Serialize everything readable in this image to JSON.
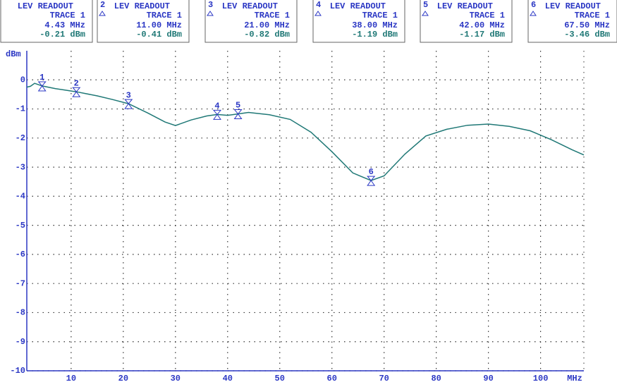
{
  "chart_data": {
    "type": "line",
    "y_label": "dBm",
    "x_label": "MHz",
    "xlim": [
      1.5,
      108.3
    ],
    "ylim": [
      -10,
      1
    ],
    "xticks": [
      10,
      20,
      30,
      40,
      50,
      60,
      70,
      80,
      90,
      100
    ],
    "yticks": [
      0,
      -1,
      -2,
      -3,
      -4,
      -5,
      -6,
      -7,
      -8,
      -9,
      -10
    ],
    "grid": true,
    "series": [
      {
        "name": "TRACE 1",
        "color": "#1f7876",
        "x": [
          1.5,
          2.2,
          3,
          4.43,
          7,
          11,
          15,
          18,
          21,
          24.7,
          28,
          30,
          33,
          36,
          38,
          40,
          42,
          44,
          48,
          52,
          56,
          60,
          64,
          67.5,
          70,
          74,
          78,
          82,
          86,
          90,
          94,
          98,
          102,
          106,
          108.3
        ],
        "values": [
          -0.25,
          -0.22,
          -0.12,
          -0.21,
          -0.3,
          -0.41,
          -0.55,
          -0.68,
          -0.82,
          -1.14,
          -1.45,
          -1.57,
          -1.38,
          -1.24,
          -1.19,
          -1.22,
          -1.17,
          -1.12,
          -1.2,
          -1.36,
          -1.8,
          -2.47,
          -3.2,
          -3.46,
          -3.3,
          -2.55,
          -1.93,
          -1.7,
          -1.56,
          -1.52,
          -1.6,
          -1.75,
          -2.05,
          -2.4,
          -2.58
        ]
      }
    ],
    "markers": [
      {
        "label": "1",
        "title": "LEV READOUT",
        "trace": "TRACE 1",
        "x": 4.43,
        "x_label": "4.43 MHz",
        "value": -0.21,
        "value_label": "-0.21 dBm"
      },
      {
        "label": "2",
        "title": "LEV READOUT",
        "trace": "TRACE 1",
        "x": 11.0,
        "x_label": "11.00 MHz",
        "value": -0.41,
        "value_label": "-0.41 dBm"
      },
      {
        "label": "3",
        "title": "LEV READOUT",
        "trace": "TRACE 1",
        "x": 21.0,
        "x_label": "21.00 MHz",
        "value": -0.82,
        "value_label": "-0.82 dBm"
      },
      {
        "label": "4",
        "title": "LEV READOUT",
        "trace": "TRACE 1",
        "x": 38.0,
        "x_label": "38.00 MHz",
        "value": -1.19,
        "value_label": "-1.19 dBm"
      },
      {
        "label": "5",
        "title": "LEV READOUT",
        "trace": "TRACE 1",
        "x": 42.0,
        "x_label": "42.00 MHz",
        "value": -1.17,
        "value_label": "-1.17 dBm"
      },
      {
        "label": "6",
        "title": "LEV READOUT",
        "trace": "TRACE 1",
        "x": 67.5,
        "x_label": "67.50 MHz",
        "value": -3.46,
        "value_label": "-3.46 dBm"
      }
    ]
  }
}
